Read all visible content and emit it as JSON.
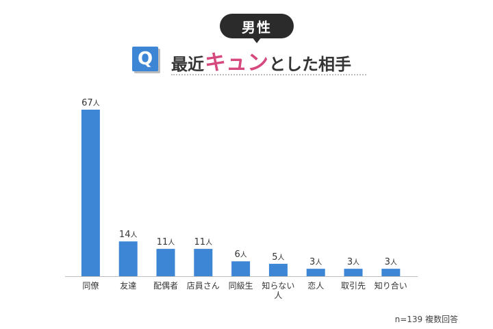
{
  "badge": {
    "label": "男性"
  },
  "question": {
    "q_icon": "Q",
    "title_prefix": "最近",
    "title_accent": "キュン",
    "title_suffix": "とした相手"
  },
  "colors": {
    "bar": "#3d86d6",
    "accent": "#d6497e",
    "badge": "#2b2b2b"
  },
  "chart_data": {
    "type": "bar",
    "categories": [
      "同僚",
      "友達",
      "配偶者",
      "店員さん",
      "同級生",
      "知らない人",
      "恋人",
      "取引先",
      "知り合い"
    ],
    "category_lines": [
      [
        "同僚"
      ],
      [
        "友達"
      ],
      [
        "配偶者"
      ],
      [
        "店員さん"
      ],
      [
        "同級生"
      ],
      [
        "知らない",
        "人"
      ],
      [
        "恋人"
      ],
      [
        "取引先"
      ],
      [
        "知り合い"
      ]
    ],
    "values": [
      67,
      14,
      11,
      11,
      6,
      5,
      3,
      3,
      3
    ],
    "value_unit": "人",
    "ylim": [
      0,
      67
    ],
    "grid": false,
    "legend": "none"
  },
  "footnote": "n=139 複数回答"
}
